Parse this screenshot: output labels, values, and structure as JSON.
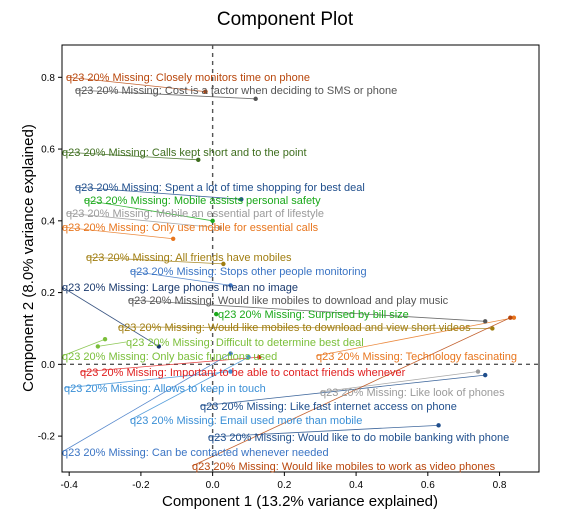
{
  "chart_data": {
    "type": "scatter",
    "title": "Component Plot",
    "xlabel": "Component 1 (13.2% variance explained)",
    "ylabel": "Component 2 (8.0% variance explained)",
    "xlim": [
      -0.42,
      0.91
    ],
    "ylim": [
      -0.3,
      0.89
    ],
    "x_ticks": [
      -0.4,
      -0.2,
      0.0,
      0.2,
      0.4,
      0.6,
      0.8
    ],
    "x_tick_labels": [
      "-0.4",
      "-0.2",
      "0.0",
      "0.2",
      "0.4",
      "0.6",
      "0.8"
    ],
    "y_ticks": [
      -0.2,
      0.0,
      0.2,
      0.4,
      0.6,
      0.8
    ],
    "y_tick_labels": [
      "-0.2",
      "0.0",
      "0.2",
      "0.4",
      "0.6",
      "0.8"
    ],
    "reference_lines": {
      "x": 0,
      "y": 0
    },
    "grid": false,
    "legend": "none",
    "points": [
      {
        "label": "q23 20% Missing: Closely monitors time on phone",
        "x": -0.02,
        "y": 0.76,
        "color": "#b8450a"
      },
      {
        "label": "q23 20% Missing: Cost is a factor when deciding to SMS or phone",
        "x": 0.12,
        "y": 0.74,
        "color": "#555555"
      },
      {
        "label": "q23 20% Missing: Calls kept short and to the point",
        "x": -0.04,
        "y": 0.57,
        "color": "#3f6e1f"
      },
      {
        "label": "q23 20% Missing: Spent a lot of time shopping for best deal",
        "x": 0.08,
        "y": 0.46,
        "color": "#1f4e8c"
      },
      {
        "label": "q23 20% Missing: Mobile assists personal safety",
        "x": 0.0,
        "y": 0.4,
        "color": "#1aa81a"
      },
      {
        "label": "q23 20% Missing: Mobile an essential part of lifestyle",
        "x": 0.02,
        "y": 0.38,
        "color": "#9b9b9b"
      },
      {
        "label": "q23 20% Missing: Only use mobile for essential calls",
        "x": -0.11,
        "y": 0.35,
        "color": "#e8761e"
      },
      {
        "label": "q23 20% Missing: All friends have mobiles",
        "x": 0.03,
        "y": 0.28,
        "color": "#a07d10"
      },
      {
        "label": "q23 20% Missing: Stops other people monitoring",
        "x": 0.05,
        "y": 0.22,
        "color": "#3a74c4"
      },
      {
        "label": "q23 20% Missing: Large phones mean no image",
        "x": -0.15,
        "y": 0.05,
        "color": "#1a3a6e"
      },
      {
        "label": "q23 20% Missing: Would like mobiles to download and play music",
        "x": 0.76,
        "y": 0.12,
        "color": "#555555"
      },
      {
        "label": "q23 20% Missing: Surprised by bill size",
        "x": 0.01,
        "y": 0.14,
        "color": "#1aa81a"
      },
      {
        "label": "q23 20% Missing: Would like mobiles to download and view short videos",
        "x": 0.78,
        "y": 0.1,
        "color": "#a07d10"
      },
      {
        "label": "q23 20% Missing: Difficult to determine best deal",
        "x": -0.32,
        "y": 0.05,
        "color": "#7bbf3a"
      },
      {
        "label": "q23 20% Missing: Only basic functions used",
        "x": -0.3,
        "y": 0.07,
        "color": "#7bbf3a"
      },
      {
        "label": "q23 20% Missing: Technology fascinating",
        "x": 0.84,
        "y": 0.13,
        "color": "#e8761e"
      },
      {
        "label": "q23 20% Missing: Important to be able to contact friends whenever",
        "x": 0.13,
        "y": 0.02,
        "color": "#e02020"
      },
      {
        "label": "q23 20% Missing: Allows to keep in touch",
        "x": 0.05,
        "y": -0.02,
        "color": "#3a8fd6"
      },
      {
        "label": "q23 20% Missing: Like look of phones",
        "x": 0.74,
        "y": -0.02,
        "color": "#9b9b9b"
      },
      {
        "label": "q23 20% Missing: Like fast internet access on phone",
        "x": 0.76,
        "y": -0.03,
        "color": "#1f4e8c"
      },
      {
        "label": "q23 20% Missing: Email used more than mobile",
        "x": 0.1,
        "y": 0.02,
        "color": "#3a8fd6"
      },
      {
        "label": "q23 20% Missing: Would like to do mobile banking with phone",
        "x": 0.63,
        "y": -0.17,
        "color": "#1f4e8c"
      },
      {
        "label": "q23 20% Missing: Can be contacted whenever needed",
        "x": 0.05,
        "y": 0.03,
        "color": "#3a74c4"
      },
      {
        "label": "q23 20% Missing: Would like mobiles to work as video phones",
        "x": 0.83,
        "y": 0.13,
        "color": "#b8450a"
      }
    ]
  }
}
